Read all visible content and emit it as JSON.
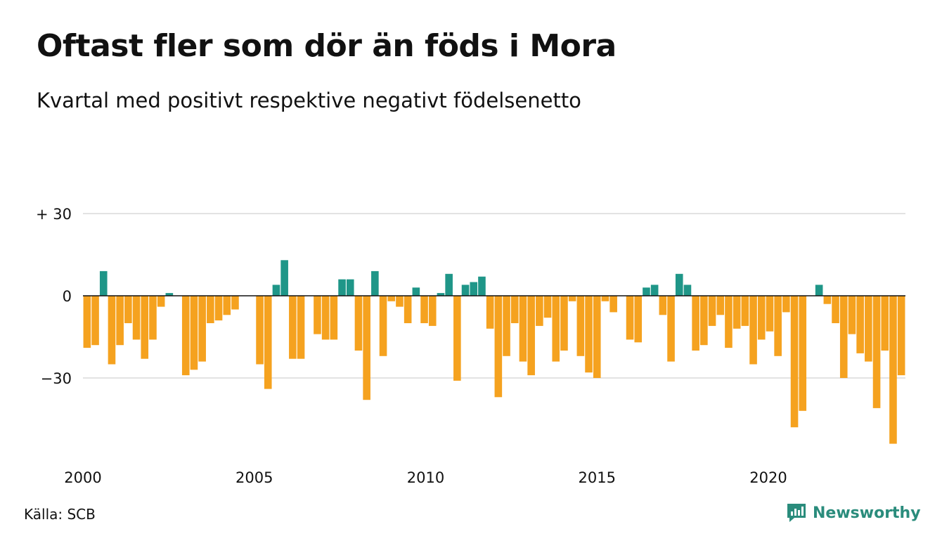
{
  "header": {
    "title": "Oftast fler som dör än föds i Mora",
    "subtitle": "Kvartal med positivt respektive negativt födelsenetto"
  },
  "footer": {
    "source": "Källa: SCB",
    "brand": "Newsworthy",
    "brand_icon": "bar-chart-logo-icon"
  },
  "colors": {
    "positive": "#1f9688",
    "negative": "#f5a21f",
    "grid": "#e3e3e3",
    "zero_line": "#111111",
    "brand": "#2a8c7c"
  },
  "chart_data": {
    "type": "bar",
    "title": "Oftast fler som dör än föds i Mora",
    "subtitle": "Kvartal med positivt respektive negativt födelsenetto",
    "x_start": 2000,
    "x_end": 2024,
    "x_ticks": [
      {
        "value": 2000,
        "label": "2000"
      },
      {
        "value": 2005,
        "label": "2005"
      },
      {
        "value": 2010,
        "label": "2010"
      },
      {
        "value": 2015,
        "label": "2015"
      },
      {
        "value": 2020,
        "label": "2020"
      }
    ],
    "y_ticks": [
      {
        "value": 30,
        "label": "+ 30"
      },
      {
        "value": 0,
        "label": "0"
      },
      {
        "value": -30,
        "label": "−30"
      }
    ],
    "ylim": [
      -56,
      30
    ],
    "grid": true,
    "legend": "none",
    "series": [
      {
        "values": [
          -19,
          -18,
          9,
          -25,
          -18,
          -10,
          -16,
          -23,
          -16,
          -4,
          1,
          0,
          -29,
          -27,
          -24,
          -10,
          -9,
          -7,
          -5,
          0,
          0,
          -25,
          -34,
          4,
          13,
          -23,
          -23,
          0,
          -14,
          -16,
          -16,
          6,
          6,
          -20,
          -38,
          9,
          -22,
          -2,
          -4,
          -10,
          3,
          -10,
          -11,
          1,
          8,
          -31,
          4,
          5,
          7,
          -12,
          -37,
          -22,
          -10,
          -24,
          -29,
          -11,
          -8,
          -24,
          -20,
          -2,
          -22,
          -28,
          -30,
          -2,
          -6,
          0,
          -16,
          -17,
          3,
          4,
          -7,
          -24,
          8,
          4,
          -20,
          -18,
          -11,
          -7,
          -19,
          -12,
          -11,
          -25,
          -16,
          -13,
          -22,
          -6,
          -48,
          -42,
          0,
          4,
          -3,
          -10,
          -30,
          -14,
          -21,
          -24,
          -41,
          -20,
          -54,
          -29
        ]
      }
    ]
  }
}
